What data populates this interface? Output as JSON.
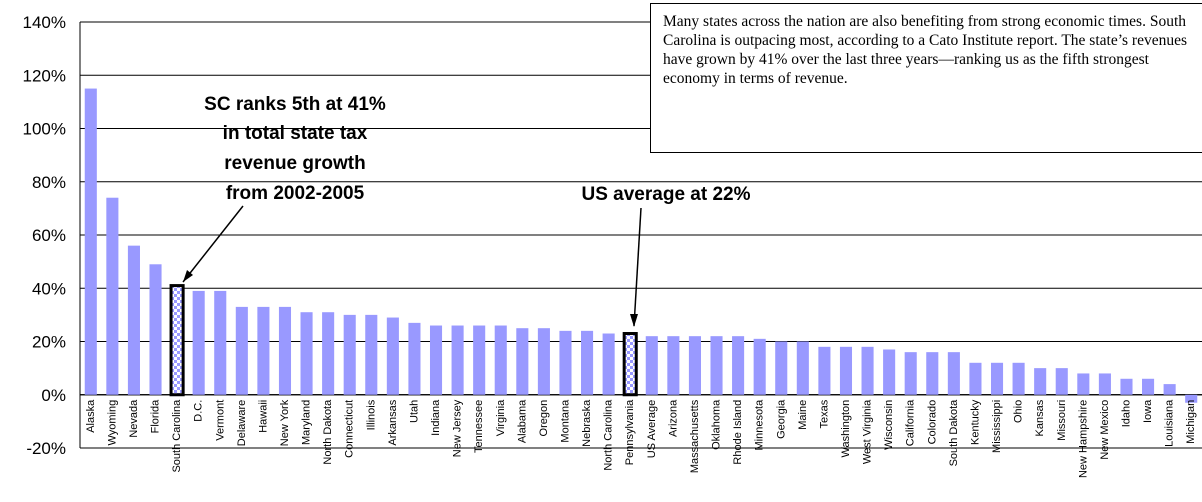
{
  "chart_data": {
    "type": "bar",
    "categories": [
      "Alaska",
      "Wyoming",
      "Nevada",
      "Florida",
      "South Carolina",
      "D.C.",
      "Vermont",
      "Delaware",
      "Hawaii",
      "New York",
      "Maryland",
      "North Dakota",
      "Connecticut",
      "Illinois",
      "Arkansas",
      "Utah",
      "Indiana",
      "New Jersey",
      "Tennessee",
      "Virginia",
      "Alabama",
      "Oregon",
      "Montana",
      "Nebraska",
      "North Carolina",
      "Pennsylvania",
      "US Average",
      "Arizona",
      "Massachusetts",
      "Oklahoma",
      "Rhode Island",
      "Minnesota",
      "Georgia",
      "Maine",
      "Texas",
      "Washington",
      "West Virginia",
      "Wisconsin",
      "California",
      "Colorado",
      "South Dakota",
      "Kentucky",
      "Mississippi",
      "Ohio",
      "Kansas",
      "Missouri",
      "New Hampshire",
      "New Mexico",
      "Idaho",
      "Iowa",
      "Louisiana",
      "Michigan"
    ],
    "values": [
      115,
      74,
      56,
      49,
      41,
      39,
      39,
      33,
      33,
      33,
      31,
      31,
      30,
      30,
      29,
      27,
      26,
      26,
      26,
      26,
      25,
      25,
      24,
      24,
      23,
      23,
      22,
      22,
      22,
      22,
      22,
      21,
      20,
      20,
      18,
      18,
      18,
      17,
      16,
      16,
      16,
      12,
      12,
      12,
      10,
      10,
      8,
      8,
      6,
      6,
      4,
      -3
    ],
    "highlighted": [
      "South Carolina",
      "US Average"
    ],
    "y_ticks": [
      "140%",
      "120%",
      "100%",
      "80%",
      "60%",
      "40%",
      "20%",
      "0%",
      "-20%"
    ],
    "ylim": [
      -20,
      140
    ],
    "grid": true,
    "bar_color": "#9999ff",
    "title": "",
    "xlabel": "",
    "ylabel": ""
  },
  "annotations": {
    "sc_note": [
      "SC ranks 5th at 41%",
      "in total state tax",
      "revenue growth",
      "from 2002-2005"
    ],
    "us_note": "US average at 22%",
    "callout_text": "Many states across the nation are also benefiting from strong economic times.  South Carolina is outpacing most, according to a Cato Institute report.  The state’s revenues have grown by 41% over the last three years—ranking us as the fifth strongest economy in terms of revenue."
  }
}
